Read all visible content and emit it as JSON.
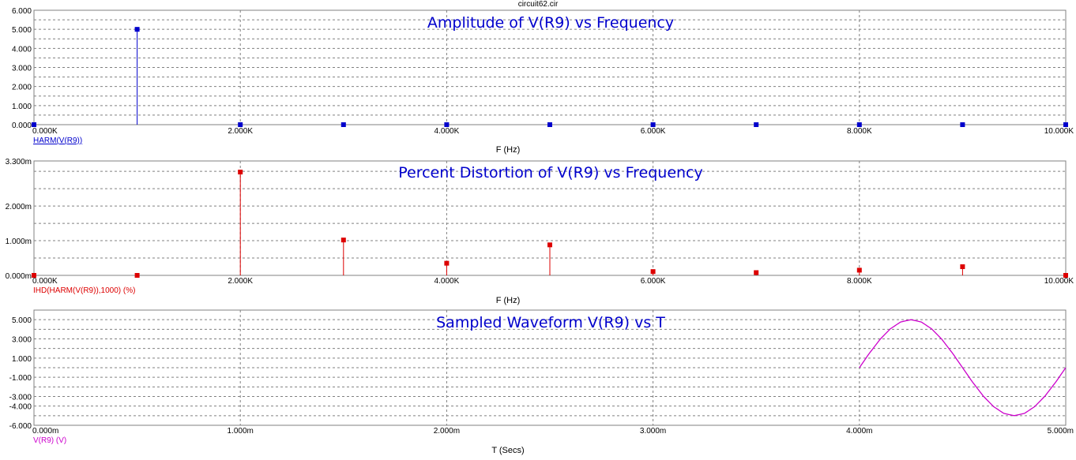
{
  "window_title": "circuit62.cir",
  "colors": {
    "amplitude": "#0000cc",
    "distortion": "#dd0000",
    "waveform": "#cc00cc",
    "title": "#0000cc",
    "grid": "#808080"
  },
  "chart_data": [
    {
      "type": "bar",
      "title": "Amplitude of V(R9) vs Frequency",
      "xlabel": "F (Hz)",
      "trace_label": "HARM(V(R9))",
      "xlim": [
        0,
        10000
      ],
      "ylim": [
        0,
        6
      ],
      "x_ticks": [
        "0.000K",
        "2.000K",
        "4.000K",
        "6.000K",
        "8.000K",
        "10.000K"
      ],
      "y_ticks": [
        "0.000",
        "1.000",
        "2.000",
        "3.000",
        "4.000",
        "5.000",
        "6.000"
      ],
      "x": [
        0,
        1000,
        2000,
        3000,
        4000,
        5000,
        6000,
        7000,
        8000,
        9000,
        10000
      ],
      "values": [
        0,
        5.0,
        0,
        0,
        0,
        0,
        0,
        0,
        0,
        0,
        0
      ]
    },
    {
      "type": "bar",
      "title": "Percent Distortion of V(R9) vs Frequency",
      "xlabel": "F (Hz)",
      "trace_label": "IHD(HARM(V(R9)),1000) (%)",
      "xlim": [
        0,
        10000
      ],
      "ylim": [
        0,
        0.0033
      ],
      "x_ticks": [
        "0.000K",
        "2.000K",
        "4.000K",
        "6.000K",
        "8.000K",
        "10.000K"
      ],
      "y_ticks": [
        "0.000m",
        "1.000m",
        "2.000m",
        "3.300m"
      ],
      "x": [
        0,
        1000,
        2000,
        3000,
        4000,
        5000,
        6000,
        7000,
        8000,
        9000,
        10000
      ],
      "values": [
        0,
        0,
        0.00298,
        0.00102,
        0.00035,
        0.00088,
        0.00011,
        8e-05,
        0.00015,
        0.00025,
        0
      ]
    },
    {
      "type": "line",
      "title": "Sampled Waveform  V(R9) vs T",
      "xlabel": "T (Secs)",
      "trace_label": "V(R9) (V)",
      "xlim": [
        0,
        0.005
      ],
      "ylim": [
        -6,
        6
      ],
      "x_ticks": [
        "0.000m",
        "1.000m",
        "2.000m",
        "3.000m",
        "4.000m",
        "5.000m"
      ],
      "y_ticks": [
        "-6.000",
        "-4.000",
        "-3.000",
        "-1.000",
        "1.000",
        "3.000",
        "5.000"
      ],
      "y_tick_values": [
        -6,
        -4,
        -3,
        -1,
        1,
        3,
        5
      ],
      "series": [
        {
          "x": [
            0.004,
            0.00405,
            0.0041,
            0.00415,
            0.0042,
            0.00425,
            0.0043,
            0.00435,
            0.0044,
            0.00445,
            0.0045,
            0.00455,
            0.0046,
            0.00465,
            0.0047,
            0.00475,
            0.0048,
            0.00485,
            0.0049,
            0.00495,
            0.005
          ],
          "y": [
            0,
            1.55,
            2.94,
            4.05,
            4.76,
            5.0,
            4.76,
            4.05,
            2.94,
            1.55,
            0,
            -1.55,
            -2.94,
            -4.05,
            -4.76,
            -5.0,
            -4.76,
            -4.05,
            -2.94,
            -1.55,
            0
          ]
        }
      ]
    }
  ]
}
